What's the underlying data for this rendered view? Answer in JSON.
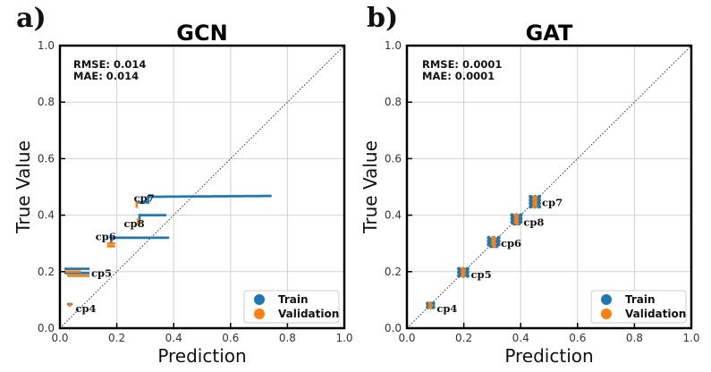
{
  "chart_data": [
    {
      "type": "scatter",
      "panel_label": "a)",
      "title": "GCN",
      "xlabel": "Prediction",
      "ylabel": "True Value",
      "xlim": [
        0.0,
        1.0
      ],
      "ylim": [
        0.0,
        1.0
      ],
      "xticks": [
        "0.0",
        "0.2",
        "0.4",
        "0.6",
        "0.8",
        "1.0"
      ],
      "yticks": [
        "0.0",
        "0.2",
        "0.4",
        "0.6",
        "0.8",
        "1.0"
      ],
      "grid": true,
      "diagonal": "y = x (dotted)",
      "metrics": [
        "RMSE: 0.014",
        "MAE: 0.014"
      ],
      "legend": {
        "placement": "bottom-right",
        "entries": [
          {
            "label": "Train",
            "color": "#1f77b4"
          },
          {
            "label": "Validation",
            "color": "#ff7f0e"
          }
        ]
      },
      "series": [
        {
          "name": "Train",
          "color": "#1f77b4",
          "segments": [
            {
              "x": [
                0.03,
                0.04
              ],
              "y": [
                0.085,
                0.085
              ]
            },
            {
              "x": [
                0.02,
                0.1
              ],
              "y": [
                0.21,
                0.21
              ]
            },
            {
              "x": [
                0.02,
                0.1
              ],
              "y": [
                0.195,
                0.195
              ]
            },
            {
              "x": [
                0.18,
                0.18
              ],
              "y": [
                0.3,
                0.32
              ]
            },
            {
              "x": [
                0.18,
                0.38
              ],
              "y": [
                0.32,
                0.32
              ]
            },
            {
              "x": [
                0.28,
                0.28
              ],
              "y": [
                0.38,
                0.4
              ]
            },
            {
              "x": [
                0.28,
                0.37
              ],
              "y": [
                0.4,
                0.4
              ]
            },
            {
              "x": [
                0.27,
                0.31
              ],
              "y": [
                0.445,
                0.445
              ]
            },
            {
              "x": [
                0.31,
                0.31
              ],
              "y": [
                0.445,
                0.465
              ]
            },
            {
              "x": [
                0.31,
                0.74
              ],
              "y": [
                0.465,
                0.468
              ]
            }
          ]
        },
        {
          "name": "Validation",
          "color": "#ff7f0e",
          "segments": [
            {
              "x": [
                0.034,
                0.036
              ],
              "y": [
                0.08,
                0.085
              ]
            },
            {
              "x": [
                0.03,
                0.1
              ],
              "y": [
                0.185,
                0.185
              ]
            },
            {
              "x": [
                0.02,
                0.07
              ],
              "y": [
                0.2,
                0.2
              ]
            },
            {
              "x": [
                0.17,
                0.19
              ],
              "y": [
                0.29,
                0.29
              ]
            },
            {
              "x": [
                0.17,
                0.19
              ],
              "y": [
                0.3,
                0.3
              ]
            },
            {
              "x": [
                0.275,
                0.275
              ],
              "y": [
                0.37,
                0.385
              ]
            },
            {
              "x": [
                0.27,
                0.27
              ],
              "y": [
                0.43,
                0.445
              ]
            }
          ]
        }
      ],
      "annotations": [
        {
          "text": "cp4",
          "x": 0.055,
          "y": 0.07
        },
        {
          "text": "cp5",
          "x": 0.11,
          "y": 0.195
        },
        {
          "text": "cp6",
          "x": 0.125,
          "y": 0.325
        },
        {
          "text": "cp8",
          "x": 0.225,
          "y": 0.37
        },
        {
          "text": "cp7",
          "x": 0.26,
          "y": 0.46
        }
      ]
    },
    {
      "type": "scatter",
      "panel_label": "b)",
      "title": "GAT",
      "xlabel": "Prediction",
      "ylabel": "True Value",
      "xlim": [
        0.0,
        1.0
      ],
      "ylim": [
        0.0,
        1.0
      ],
      "xticks": [
        "0.0",
        "0.2",
        "0.4",
        "0.6",
        "0.8",
        "1.0"
      ],
      "yticks": [
        "0.0",
        "0.2",
        "0.4",
        "0.6",
        "0.8",
        "1.0"
      ],
      "grid": true,
      "diagonal": "y = x (dotted)",
      "metrics": [
        "RMSE: 0.0001",
        "MAE: 0.0001"
      ],
      "legend": {
        "placement": "bottom-right",
        "entries": [
          {
            "label": "Train",
            "color": "#1f77b4"
          },
          {
            "label": "Validation",
            "color": "#ff7f0e"
          }
        ]
      },
      "clusters": [
        {
          "label": "cp4",
          "x": 0.083,
          "y_min": 0.08,
          "y_max": 0.087,
          "half_width": 0.008
        },
        {
          "label": "cp5",
          "x": 0.198,
          "y_min": 0.185,
          "y_max": 0.21,
          "half_width": 0.015
        },
        {
          "label": "cp6",
          "x": 0.305,
          "y_min": 0.29,
          "y_max": 0.32,
          "half_width": 0.018
        },
        {
          "label": "cp8",
          "x": 0.385,
          "y_min": 0.37,
          "y_max": 0.4,
          "half_width": 0.015
        },
        {
          "label": "cp7",
          "x": 0.45,
          "y_min": 0.43,
          "y_max": 0.465,
          "half_width": 0.015
        }
      ],
      "annotations": [
        {
          "text": "cp4",
          "x": 0.105,
          "y": 0.07
        },
        {
          "text": "cp5",
          "x": 0.225,
          "y": 0.19
        },
        {
          "text": "cp6",
          "x": 0.33,
          "y": 0.3
        },
        {
          "text": "cp8",
          "x": 0.41,
          "y": 0.375
        },
        {
          "text": "cp7",
          "x": 0.475,
          "y": 0.445
        }
      ]
    }
  ]
}
